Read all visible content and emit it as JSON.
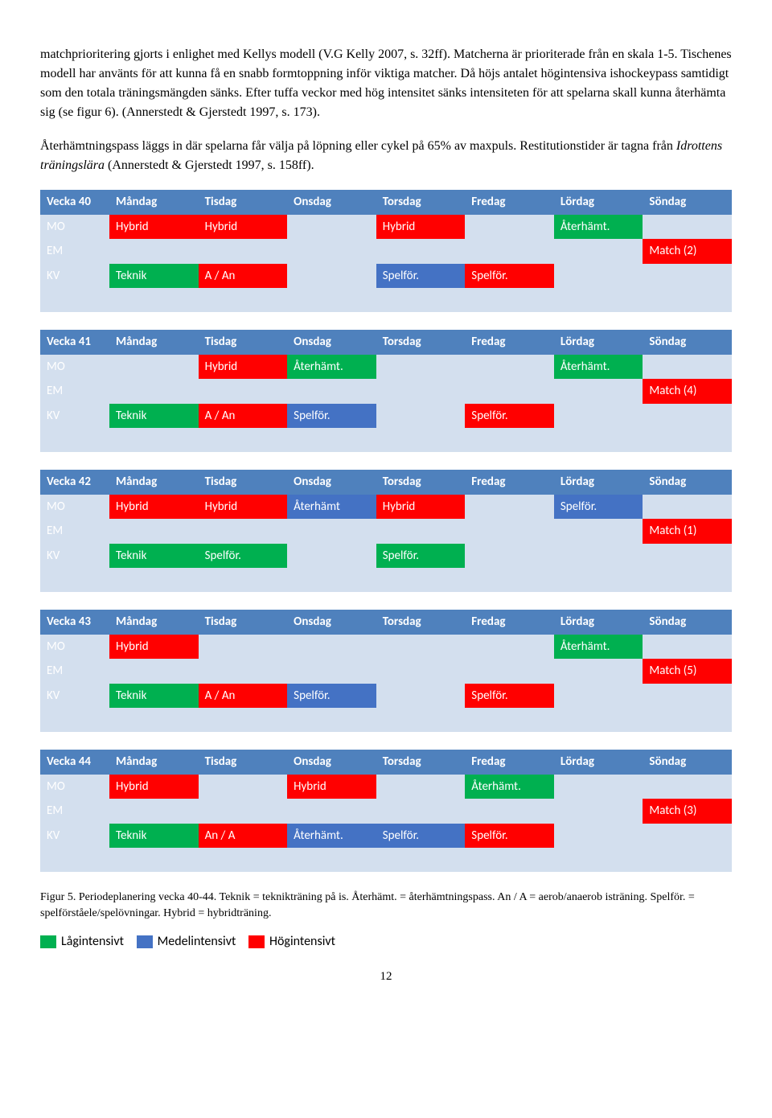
{
  "paragraphs": {
    "p1": "matchprioritering gjorts i enlighet med Kellys modell (V.G Kelly 2007, s. 32ff). Matcherna är prioriterade från en skala 1-5. Tischenes modell har använts för att kunna få en snabb formtoppning inför viktiga matcher. Då höjs antalet högintensiva ishockeypass samtidigt som den totala träningsmängden sänks. Efter tuffa veckor med hög intensitet sänks intensiteten för att spelarna skall kunna återhämta sig (se figur 6). (Annerstedt & Gjerstedt 1997, s. 173).",
    "p2a": "Återhämtningspass läggs in där spelarna får välja på löpning eller cykel på 65% av maxpuls. Restitutionstider är tagna från ",
    "p2i": "Idrottens träningslära",
    "p2b": " (Annerstedt & Gjerstedt 1997, s. 158ff)."
  },
  "days": [
    "Måndag",
    "Tisdag",
    "Onsdag",
    "Torsdag",
    "Fredag",
    "Lördag",
    "Söndag"
  ],
  "rowLabels": [
    "MO",
    "EM",
    "KV"
  ],
  "weeks": [
    {
      "title": "Vecka 40",
      "rows": [
        [
          {
            "t": "Hybrid",
            "c": "hybrid"
          },
          {
            "t": "Hybrid",
            "c": "hybrid"
          },
          {
            "t": "",
            "c": "empty"
          },
          {
            "t": "Hybrid",
            "c": "hybrid"
          },
          {
            "t": "",
            "c": "empty"
          },
          {
            "t": "Återhämt.",
            "c": "aterhamt"
          },
          {
            "t": "",
            "c": "empty"
          }
        ],
        [
          {
            "t": "",
            "c": "empty"
          },
          {
            "t": "",
            "c": "empty"
          },
          {
            "t": "",
            "c": "empty"
          },
          {
            "t": "",
            "c": "empty"
          },
          {
            "t": "",
            "c": "empty"
          },
          {
            "t": "",
            "c": "empty"
          },
          {
            "t": "Match (2)",
            "c": "match"
          }
        ],
        [
          {
            "t": "Teknik",
            "c": "teknik"
          },
          {
            "t": "A / An",
            "c": "aan"
          },
          {
            "t": "",
            "c": "empty"
          },
          {
            "t": "Spelför.",
            "c": "spelfor-blue"
          },
          {
            "t": "Spelför.",
            "c": "spelfor-red"
          },
          {
            "t": "",
            "c": "empty"
          },
          {
            "t": "",
            "c": "empty"
          }
        ]
      ]
    },
    {
      "title": "Vecka 41",
      "rows": [
        [
          {
            "t": "",
            "c": "empty"
          },
          {
            "t": "Hybrid",
            "c": "hybrid"
          },
          {
            "t": "Återhämt.",
            "c": "aterhamt"
          },
          {
            "t": "",
            "c": "empty"
          },
          {
            "t": "",
            "c": "empty"
          },
          {
            "t": "Återhämt.",
            "c": "aterhamt"
          },
          {
            "t": "",
            "c": "empty"
          }
        ],
        [
          {
            "t": "",
            "c": "empty"
          },
          {
            "t": "",
            "c": "empty"
          },
          {
            "t": "",
            "c": "empty"
          },
          {
            "t": "",
            "c": "empty"
          },
          {
            "t": "",
            "c": "empty"
          },
          {
            "t": "",
            "c": "empty"
          },
          {
            "t": "Match (4)",
            "c": "match"
          }
        ],
        [
          {
            "t": "Teknik",
            "c": "teknik"
          },
          {
            "t": "A / An",
            "c": "aan"
          },
          {
            "t": "Spelför.",
            "c": "spelfor-blue"
          },
          {
            "t": "",
            "c": "empty"
          },
          {
            "t": "Spelför.",
            "c": "spelfor-red"
          },
          {
            "t": "",
            "c": "empty"
          },
          {
            "t": "",
            "c": "empty"
          }
        ]
      ]
    },
    {
      "title": "Vecka 42",
      "rows": [
        [
          {
            "t": "Hybrid",
            "c": "hybrid"
          },
          {
            "t": "Hybrid",
            "c": "hybrid"
          },
          {
            "t": "Återhämt",
            "c": "aterhamt-blue"
          },
          {
            "t": "Hybrid",
            "c": "hybrid"
          },
          {
            "t": "",
            "c": "empty"
          },
          {
            "t": "Spelför.",
            "c": "spelfor-blue"
          },
          {
            "t": "",
            "c": "empty"
          }
        ],
        [
          {
            "t": "",
            "c": "empty"
          },
          {
            "t": "",
            "c": "empty"
          },
          {
            "t": "",
            "c": "empty"
          },
          {
            "t": "",
            "c": "empty"
          },
          {
            "t": "",
            "c": "empty"
          },
          {
            "t": "",
            "c": "empty"
          },
          {
            "t": "Match (1)",
            "c": "match"
          }
        ],
        [
          {
            "t": "Teknik",
            "c": "teknik"
          },
          {
            "t": "Spelför.",
            "c": "spelfor-green"
          },
          {
            "t": "",
            "c": "empty"
          },
          {
            "t": "Spelför.",
            "c": "spelfor-green"
          },
          {
            "t": "",
            "c": "empty"
          },
          {
            "t": "",
            "c": "empty"
          },
          {
            "t": "",
            "c": "empty"
          }
        ]
      ]
    },
    {
      "title": "Vecka 43",
      "rows": [
        [
          {
            "t": "Hybrid",
            "c": "hybrid"
          },
          {
            "t": "",
            "c": "empty"
          },
          {
            "t": "",
            "c": "empty"
          },
          {
            "t": "",
            "c": "empty"
          },
          {
            "t": "",
            "c": "empty"
          },
          {
            "t": "Återhämt.",
            "c": "aterhamt"
          },
          {
            "t": "",
            "c": "empty"
          }
        ],
        [
          {
            "t": "",
            "c": "empty"
          },
          {
            "t": "",
            "c": "empty"
          },
          {
            "t": "",
            "c": "empty"
          },
          {
            "t": "",
            "c": "empty"
          },
          {
            "t": "",
            "c": "empty"
          },
          {
            "t": "",
            "c": "empty"
          },
          {
            "t": "Match (5)",
            "c": "match"
          }
        ],
        [
          {
            "t": "Teknik",
            "c": "teknik"
          },
          {
            "t": "A / An",
            "c": "aan"
          },
          {
            "t": "Spelför.",
            "c": "spelfor-blue"
          },
          {
            "t": "",
            "c": "empty"
          },
          {
            "t": "Spelför.",
            "c": "spelfor-red"
          },
          {
            "t": "",
            "c": "empty"
          },
          {
            "t": "",
            "c": "empty"
          }
        ]
      ]
    },
    {
      "title": "Vecka 44",
      "rows": [
        [
          {
            "t": "Hybrid",
            "c": "hybrid"
          },
          {
            "t": "",
            "c": "empty"
          },
          {
            "t": "Hybrid",
            "c": "hybrid"
          },
          {
            "t": "",
            "c": "empty"
          },
          {
            "t": "Återhämt.",
            "c": "aterhamt"
          },
          {
            "t": "",
            "c": "empty"
          },
          {
            "t": "",
            "c": "empty"
          }
        ],
        [
          {
            "t": "",
            "c": "empty"
          },
          {
            "t": "",
            "c": "empty"
          },
          {
            "t": "",
            "c": "empty"
          },
          {
            "t": "",
            "c": "empty"
          },
          {
            "t": "",
            "c": "empty"
          },
          {
            "t": "",
            "c": "empty"
          },
          {
            "t": "Match (3)",
            "c": "match"
          }
        ],
        [
          {
            "t": "Teknik",
            "c": "teknik"
          },
          {
            "t": "An / A",
            "c": "aan"
          },
          {
            "t": "Återhämt.",
            "c": "aterhamt-blue"
          },
          {
            "t": "Spelför.",
            "c": "spelfor-blue"
          },
          {
            "t": "Spelför.",
            "c": "spelfor-red"
          },
          {
            "t": "",
            "c": "empty"
          },
          {
            "t": "",
            "c": "empty"
          }
        ]
      ]
    }
  ],
  "caption": "Figur 5. Periodeplanering vecka 40-44. Teknik = teknikträning på is. Återhämt. = återhämtningspass. An / A = aerob/anaerob isträning. Spelför. = spelförståele/spelövningar. Hybrid = hybridträning.",
  "legend": {
    "low": "Lågintensivt",
    "med": "Medelintensivt",
    "high": "Högintensivt"
  },
  "pageNumber": "12",
  "colors": {
    "header": "#4f81bd",
    "empty": "#d3dfee",
    "rowlabel_text": "#1f497d",
    "red": "#ff0000",
    "green": "#00b050",
    "blue": "#4472c4"
  }
}
